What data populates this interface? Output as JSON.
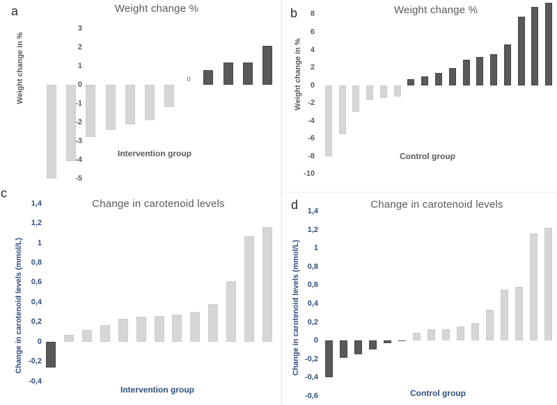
{
  "colors": {
    "light_bar": "#d6d6d6",
    "light_bar_border": "#cccccc",
    "dark_bar": "#595959",
    "dark_bar_border": "#454545",
    "gray_text": "#595959",
    "navy_text": "#2f4d7e",
    "divider": "#e0e0e0",
    "background": "#ffffff"
  },
  "chart_data": [
    {
      "id": "a",
      "panel_letter": "a",
      "type": "bar",
      "title": "Weight change %",
      "ylabel": "Weight change in %",
      "xlabel": "Intervention group",
      "ylim": [
        -5,
        3
      ],
      "grid": false,
      "legend": false,
      "yticks": [
        {
          "v": 3,
          "label": "3"
        },
        {
          "v": 2,
          "label": "2"
        },
        {
          "v": 1,
          "label": "1"
        },
        {
          "v": 0,
          "label": "0"
        },
        {
          "v": -1,
          "label": "-1"
        },
        {
          "v": -2,
          "label": "-2"
        },
        {
          "v": -3,
          "label": "-3"
        },
        {
          "v": -4,
          "label": "-4"
        },
        {
          "v": -5,
          "label": "-5"
        }
      ],
      "values": [
        -5.0,
        -4.1,
        -2.8,
        -2.4,
        -2.1,
        -1.9,
        -1.2,
        0,
        0.8,
        1.2,
        1.2,
        2.1
      ],
      "negative_color": "light",
      "positive_color": "dark",
      "zero_marker": {
        "index": 7,
        "label": "0"
      }
    },
    {
      "id": "b",
      "panel_letter": "b",
      "type": "bar",
      "title": "Weight change %",
      "ylabel": "Weight change in %",
      "xlabel": "Control group",
      "ylim": [
        -10,
        8
      ],
      "grid": false,
      "legend": false,
      "yticks": [
        {
          "v": 8,
          "label": "8"
        },
        {
          "v": 6,
          "label": "6"
        },
        {
          "v": 4,
          "label": "4"
        },
        {
          "v": 2,
          "label": "2"
        },
        {
          "v": 0,
          "label": "0"
        },
        {
          "v": -2,
          "label": "-2"
        },
        {
          "v": -4,
          "label": "-4"
        },
        {
          "v": -6,
          "label": "-6"
        },
        {
          "v": -8,
          "label": "-8"
        },
        {
          "v": -10,
          "label": "-10"
        }
      ],
      "values": [
        -8.0,
        -5.5,
        -3.0,
        -1.7,
        -1.45,
        -1.3,
        0.7,
        1.0,
        1.4,
        1.9,
        2.9,
        3.2,
        3.5,
        4.6,
        7.7,
        8.8,
        9.3
      ],
      "negative_color": "light",
      "positive_color": "dark"
    },
    {
      "id": "c",
      "panel_letter": "c",
      "type": "bar",
      "title": "Change in carotenoid levels",
      "ylabel": "Change in carotenoid levels (mmol/L)",
      "xlabel": "Intervention group",
      "ylim": [
        -0.4,
        1.4
      ],
      "grid": false,
      "legend": false,
      "yticks": [
        {
          "v": 1.4,
          "label": "1,4"
        },
        {
          "v": 1.2,
          "label": "1,2"
        },
        {
          "v": 1,
          "label": "1"
        },
        {
          "v": 0.8,
          "label": "0,8"
        },
        {
          "v": 0.6,
          "label": "0,6"
        },
        {
          "v": 0.4,
          "label": "0,4"
        },
        {
          "v": 0.2,
          "label": "0,2"
        },
        {
          "v": 0,
          "label": "0"
        },
        {
          "v": -0.2,
          "label": "-0,2"
        },
        {
          "v": -0.4,
          "label": "-0,4"
        }
      ],
      "values": [
        -0.26,
        0.07,
        0.12,
        0.17,
        0.23,
        0.25,
        0.26,
        0.27,
        0.3,
        0.38,
        0.61,
        1.07,
        1.16
      ],
      "negative_color": "dark",
      "positive_color": "light"
    },
    {
      "id": "d",
      "panel_letter": "d",
      "type": "bar",
      "title": "Change in carotenoid levels",
      "ylabel": "Change in carotenoid levels (mmol/L)",
      "xlabel": "Control group",
      "ylim": [
        -0.6,
        1.4
      ],
      "grid": false,
      "legend": false,
      "yticks": [
        {
          "v": 1.4,
          "label": "1,4"
        },
        {
          "v": 1.2,
          "label": "1,2"
        },
        {
          "v": 1,
          "label": "1"
        },
        {
          "v": 0.8,
          "label": "0,8"
        },
        {
          "v": 0.6,
          "label": "0,6"
        },
        {
          "v": 0.4,
          "label": "0,4"
        },
        {
          "v": 0.2,
          "label": "0,2"
        },
        {
          "v": 0,
          "label": "0"
        },
        {
          "v": -0.2,
          "label": "-0,2"
        },
        {
          "v": -0.4,
          "label": "-0,4"
        },
        {
          "v": -0.6,
          "label": "-0,6"
        }
      ],
      "values": [
        -0.4,
        -0.19,
        -0.15,
        -0.1,
        -0.03,
        -0.01,
        0.08,
        0.12,
        0.12,
        0.15,
        0.19,
        0.33,
        0.55,
        0.58,
        1.16,
        1.22
      ],
      "negative_color": "dark",
      "positive_color": "light"
    }
  ]
}
